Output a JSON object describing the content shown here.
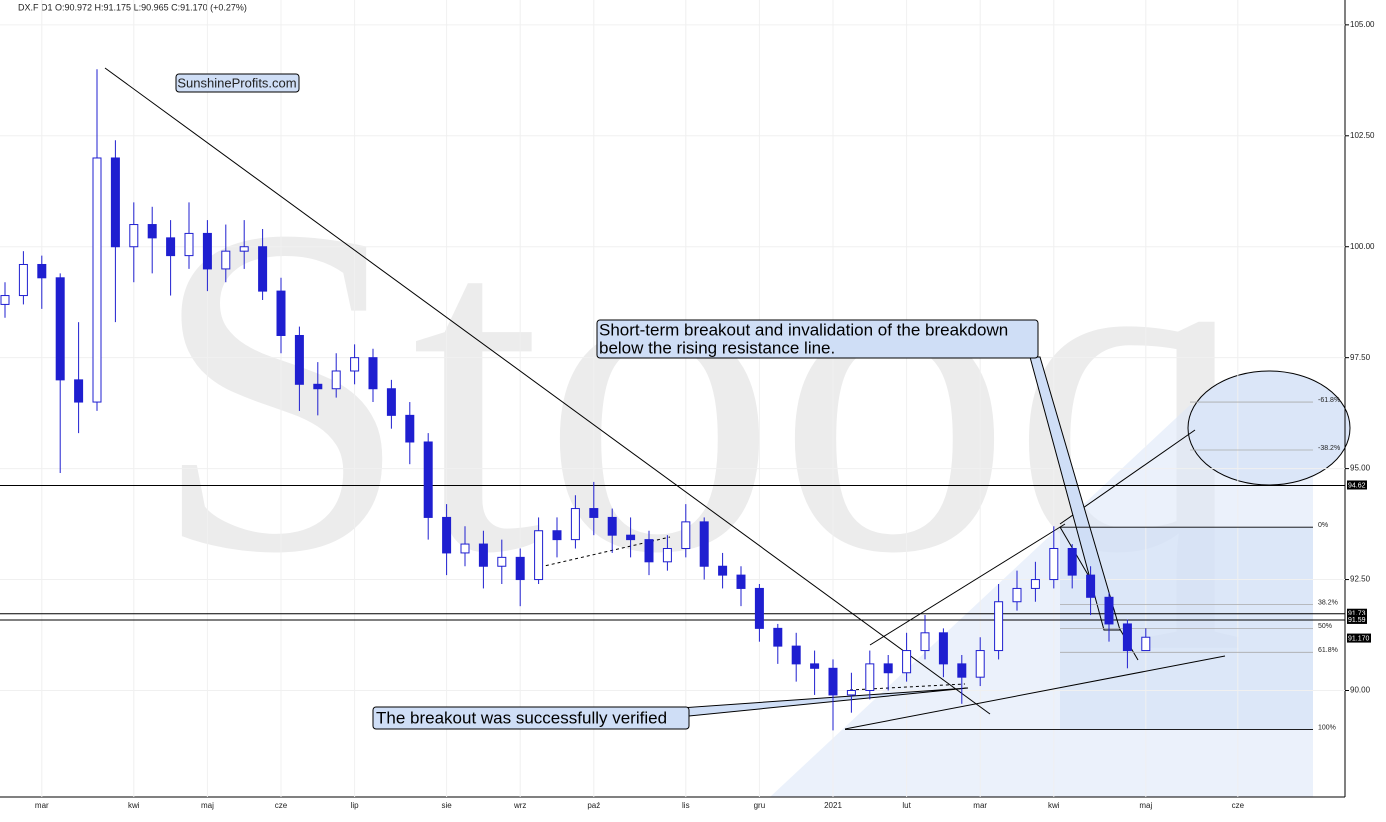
{
  "chart_data": {
    "type": "candlestick",
    "title": "DX.F  D1  O:90.972  H:91.175  L:90.965  C:91.170  (+0.27%)",
    "watermark": "Stooq",
    "logo": "SunshineProfits.com",
    "annotations": [
      {
        "lines": [
          "Short-term breakout and invalidation of the breakdown",
          "below the rising resistance line."
        ]
      },
      {
        "lines": [
          "The breakout was successfully verified"
        ]
      }
    ],
    "categories": [
      null,
      null,
      "mar",
      null,
      null,
      null,
      null,
      "kwi",
      null,
      null,
      null,
      "maj",
      null,
      null,
      null,
      "cze",
      null,
      null,
      null,
      "lip",
      null,
      null,
      null,
      null,
      "sie",
      null,
      null,
      null,
      "wrz",
      null,
      null,
      null,
      "paź",
      null,
      null,
      null,
      null,
      "lis",
      null,
      null,
      null,
      "gru",
      null,
      null,
      null,
      "2021",
      null,
      null,
      null,
      "lut",
      null,
      null,
      null,
      "mar",
      null,
      null,
      null,
      "kwi",
      null,
      null,
      null,
      null,
      "maj",
      null,
      null,
      null,
      null,
      "cze",
      null,
      null,
      null,
      null,
      null
    ],
    "open": [
      98.7,
      98.9,
      99.6,
      99.3,
      97.0,
      96.5,
      102.0,
      100.0,
      100.5,
      100.2,
      99.8,
      100.3,
      99.5,
      99.9,
      100.0,
      99.0,
      98.0,
      96.9,
      96.8,
      97.2,
      97.5,
      96.8,
      96.2,
      95.6,
      93.9,
      93.1,
      93.3,
      92.8,
      93.0,
      92.5,
      93.6,
      93.4,
      94.1,
      93.9,
      93.5,
      93.4,
      92.9,
      93.2,
      93.8,
      92.8,
      92.6,
      92.3,
      91.4,
      91.0,
      90.6,
      90.5,
      89.9,
      90.0,
      90.6,
      90.4,
      90.9,
      91.3,
      90.6,
      90.3,
      90.9,
      92.0,
      92.3,
      92.5,
      93.2,
      92.6,
      92.1,
      91.5,
      90.9,
      null,
      null,
      null,
      null,
      null,
      null,
      null,
      null,
      null,
      null
    ],
    "high": [
      99.2,
      99.9,
      99.8,
      99.4,
      98.3,
      104.0,
      102.4,
      101.0,
      100.9,
      100.6,
      101.0,
      100.6,
      100.5,
      100.6,
      100.4,
      99.3,
      98.2,
      97.4,
      97.6,
      97.8,
      97.7,
      97.0,
      96.5,
      95.8,
      94.2,
      93.7,
      93.6,
      93.4,
      93.2,
      93.9,
      93.9,
      94.4,
      94.7,
      94.1,
      93.9,
      93.6,
      93.5,
      94.2,
      93.9,
      93.1,
      92.8,
      92.4,
      91.5,
      91.3,
      90.9,
      90.7,
      90.4,
      90.9,
      90.8,
      91.3,
      91.7,
      91.4,
      90.8,
      91.2,
      92.4,
      92.7,
      92.9,
      93.7,
      93.3,
      92.8,
      92.2,
      91.6,
      91.4,
      null,
      null,
      null,
      null,
      null,
      null,
      null,
      null,
      null,
      null
    ],
    "low": [
      98.4,
      98.7,
      98.6,
      94.9,
      95.8,
      96.3,
      98.3,
      99.2,
      99.4,
      98.9,
      99.5,
      99.0,
      99.2,
      99.5,
      98.8,
      97.6,
      96.3,
      96.2,
      96.6,
      96.9,
      96.5,
      95.9,
      95.1,
      93.4,
      92.6,
      92.8,
      92.3,
      92.4,
      91.9,
      92.4,
      93.0,
      93.2,
      93.5,
      93.1,
      93.0,
      92.6,
      92.7,
      93.0,
      92.5,
      92.3,
      91.9,
      91.1,
      90.6,
      90.2,
      89.9,
      89.1,
      89.5,
      89.8,
      90.0,
      90.2,
      90.7,
      90.3,
      89.7,
      90.1,
      90.7,
      91.8,
      92.0,
      92.3,
      92.3,
      91.7,
      91.1,
      90.5,
      90.9,
      null,
      null,
      null,
      null,
      null,
      null,
      null,
      null,
      null,
      null
    ],
    "close": [
      98.9,
      99.6,
      99.3,
      97.0,
      96.5,
      102.0,
      100.0,
      100.5,
      100.2,
      99.8,
      100.3,
      99.5,
      99.9,
      100.0,
      99.0,
      98.0,
      96.9,
      96.8,
      97.2,
      97.5,
      96.8,
      96.2,
      95.6,
      93.9,
      93.1,
      93.3,
      92.8,
      93.0,
      92.5,
      93.6,
      93.4,
      94.1,
      93.9,
      93.5,
      93.4,
      92.9,
      93.2,
      93.8,
      92.8,
      92.6,
      92.3,
      91.4,
      91.0,
      90.6,
      90.5,
      89.9,
      90.0,
      90.6,
      90.4,
      90.9,
      91.3,
      90.6,
      90.3,
      90.9,
      92.0,
      92.3,
      92.5,
      93.2,
      92.6,
      92.1,
      91.5,
      90.9,
      91.2,
      null,
      null,
      null,
      null,
      null,
      null,
      null,
      null,
      null,
      null
    ],
    "color": "#1f1fd0",
    "ylim": [
      87.6,
      105.56
    ],
    "yticks": [
      {
        "value": 90,
        "label": "90.00"
      },
      {
        "value": 92.5,
        "label": "92.50"
      },
      {
        "value": 95,
        "label": "95.00"
      },
      {
        "value": 97.5,
        "label": "97.50"
      },
      {
        "value": 100,
        "label": "100.00"
      },
      {
        "value": 102.5,
        "label": "102.50"
      },
      {
        "value": 105,
        "label": "105.00"
      }
    ],
    "levels": [
      94.62,
      91.73,
      91.59,
      {
        "value": 91.17,
        "label": "91.170"
      }
    ],
    "fib_levels": [
      {
        "value": 96.5,
        "label": "-61.8%"
      },
      {
        "value": 95.42,
        "label": "-38.2%"
      },
      {
        "value": 93.68,
        "label": "0%"
      },
      {
        "value": 91.94,
        "label": "38.2%"
      },
      {
        "value": 91.4,
        "label": "50%"
      },
      {
        "value": 90.86,
        "label": "61.8%"
      },
      {
        "value": 89.12,
        "label": "100%"
      }
    ],
    "grid": true
  }
}
